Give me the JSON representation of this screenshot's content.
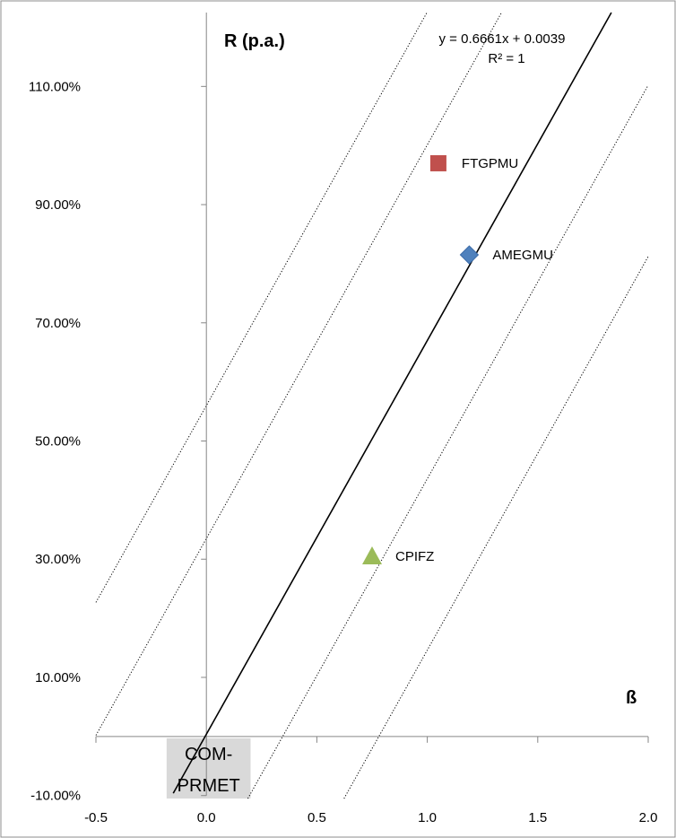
{
  "chart_data": {
    "type": "scatter",
    "xlabel": "ß",
    "ylabel": "R (p.a.)",
    "xlim": [
      -0.5,
      2.0
    ],
    "ylim": [
      -0.105,
      1.225
    ],
    "x_ticks": [
      -0.5,
      0.0,
      0.5,
      1.0,
      1.5,
      2.0
    ],
    "x_tick_labels": [
      "-0.5",
      "0.0",
      "0.5",
      "1.0",
      "1.5",
      "2.0"
    ],
    "y_ticks": [
      -0.1,
      0.1,
      0.3,
      0.5,
      0.7,
      0.9,
      1.1
    ],
    "y_tick_labels": [
      "-10.00%",
      "10.00%",
      "30.00%",
      "50.00%",
      "70.00%",
      "90.00%",
      "110.00%"
    ],
    "grid": false,
    "legend": "none",
    "trendline": {
      "slope": 0.6661,
      "intercept": 0.0039,
      "equation": "y = 0.6661x + 0.0039",
      "r_squared": "R² = 1",
      "color": "#000000"
    },
    "parallel_lines": {
      "slope": 0.6661,
      "intercepts": [
        0.56,
        0.335,
        -0.23,
        -0.52
      ],
      "style": "dotted"
    },
    "points": [
      {
        "label": "FTGPMU",
        "x": 1.05,
        "y": 0.97,
        "marker": "square",
        "color": "#C0504D"
      },
      {
        "label": "AMEGMU",
        "x": 1.19,
        "y": 0.815,
        "marker": "diamond",
        "color": "#4F81BD"
      },
      {
        "label": "CPIFZ",
        "x": 0.75,
        "y": 0.305,
        "marker": "triangle",
        "color": "#9BBB59"
      }
    ],
    "annotation_box": {
      "lines": [
        "COM-",
        "PRMET"
      ],
      "fill": "#D9D9D9"
    }
  }
}
